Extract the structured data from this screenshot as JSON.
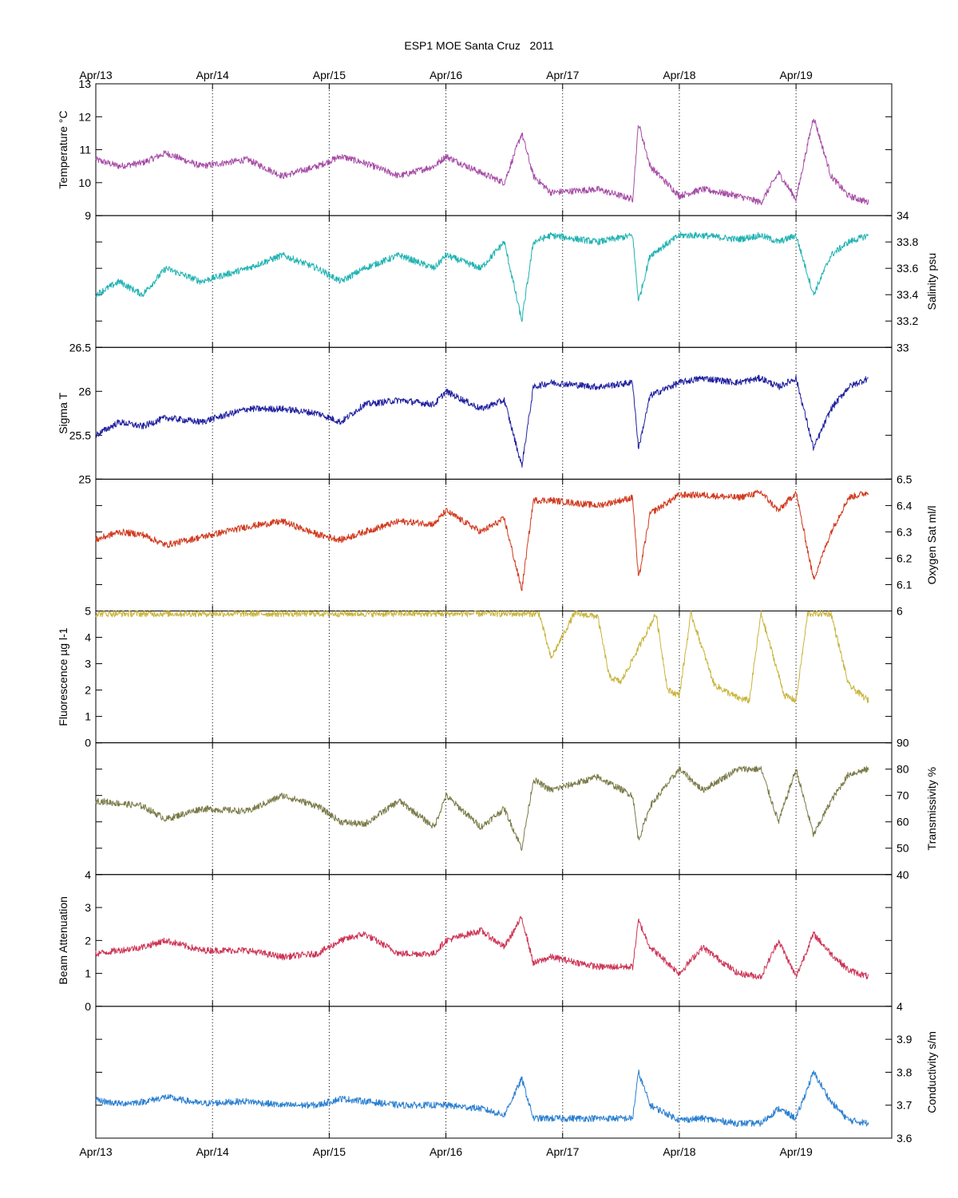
{
  "figure": {
    "title": "ESP1 MOE Santa Cruz   2011"
  },
  "chart_data": {
    "type": "line",
    "x_tick_labels": [
      "Apr/13",
      "Apr/14",
      "Apr/15",
      "Apr/16",
      "Apr/17",
      "Apr/18",
      "Apr/19"
    ],
    "x_range": [
      "2011-04-13",
      "2011-04-19T20:00"
    ],
    "grid": "vertical dotted lines at each day",
    "panels": [
      {
        "id": "temperature",
        "ylabel": "Temperature °C",
        "axis_side": "left",
        "ylim": [
          9,
          13
        ],
        "ticks": [
          9,
          10,
          11,
          12,
          13
        ],
        "color": "#a64ca6",
        "series": {
          "x_days": [
            0,
            0.2,
            0.4,
            0.6,
            0.9,
            1.3,
            1.6,
            1.9,
            2.1,
            2.3,
            2.6,
            2.9,
            3.0,
            3.3,
            3.5,
            3.65,
            3.75,
            3.9,
            4.3,
            4.6,
            4.65,
            4.75,
            5.0,
            5.2,
            5.5,
            5.7,
            5.85,
            6.0,
            6.15,
            6.3,
            6.45,
            6.62
          ],
          "y": [
            10.7,
            10.5,
            10.6,
            10.9,
            10.5,
            10.7,
            10.2,
            10.5,
            10.8,
            10.6,
            10.2,
            10.5,
            10.8,
            10.3,
            10.0,
            11.5,
            10.2,
            9.7,
            9.8,
            9.5,
            11.8,
            10.5,
            9.6,
            9.8,
            9.6,
            9.4,
            10.3,
            9.5,
            12.0,
            10.2,
            9.6,
            9.4
          ]
        }
      },
      {
        "id": "salinity",
        "ylabel": "Salinity psu",
        "axis_side": "right",
        "ylim": [
          33,
          34
        ],
        "ticks": [
          33,
          33.2,
          33.4,
          33.6,
          33.8,
          34
        ],
        "color": "#20b2b2",
        "series": {
          "x_days": [
            0,
            0.2,
            0.4,
            0.6,
            0.9,
            1.3,
            1.6,
            1.9,
            2.1,
            2.3,
            2.6,
            2.9,
            3.0,
            3.3,
            3.5,
            3.65,
            3.75,
            3.9,
            4.3,
            4.6,
            4.65,
            4.75,
            5.0,
            5.2,
            5.5,
            5.7,
            5.85,
            6.0,
            6.15,
            6.3,
            6.45,
            6.62
          ],
          "y": [
            33.4,
            33.5,
            33.4,
            33.6,
            33.5,
            33.6,
            33.7,
            33.6,
            33.5,
            33.6,
            33.7,
            33.6,
            33.7,
            33.6,
            33.8,
            33.2,
            33.8,
            33.85,
            33.8,
            33.85,
            33.35,
            33.7,
            33.85,
            33.85,
            33.82,
            33.85,
            33.8,
            33.85,
            33.4,
            33.7,
            33.8,
            33.85
          ]
        }
      },
      {
        "id": "sigma-t",
        "ylabel": "Sigma T",
        "axis_side": "left",
        "ylim": [
          25,
          26.5
        ],
        "ticks": [
          25,
          25.5,
          26,
          26.5
        ],
        "color": "#2020a0",
        "series": {
          "x_days": [
            0,
            0.2,
            0.4,
            0.6,
            0.9,
            1.3,
            1.6,
            1.9,
            2.1,
            2.3,
            2.6,
            2.9,
            3.0,
            3.3,
            3.5,
            3.65,
            3.75,
            3.9,
            4.3,
            4.6,
            4.65,
            4.75,
            5.0,
            5.2,
            5.5,
            5.7,
            5.85,
            6.0,
            6.15,
            6.3,
            6.45,
            6.62
          ],
          "y": [
            25.5,
            25.65,
            25.6,
            25.7,
            25.65,
            25.8,
            25.8,
            25.75,
            25.65,
            25.85,
            25.9,
            25.85,
            26.0,
            25.8,
            25.9,
            25.15,
            26.05,
            26.1,
            26.05,
            26.1,
            25.35,
            25.95,
            26.1,
            26.15,
            26.1,
            26.15,
            26.05,
            26.15,
            25.35,
            25.8,
            26.05,
            26.15
          ]
        }
      },
      {
        "id": "oxygen",
        "ylabel": "Oxygen Sat ml/l",
        "axis_side": "right",
        "ylim": [
          6,
          6.5
        ],
        "ticks": [
          6,
          6.1,
          6.2,
          6.3,
          6.4,
          6.5
        ],
        "color": "#d03a1e",
        "series": {
          "x_days": [
            0,
            0.2,
            0.4,
            0.6,
            0.9,
            1.3,
            1.6,
            1.9,
            2.1,
            2.3,
            2.6,
            2.9,
            3.0,
            3.3,
            3.5,
            3.65,
            3.75,
            3.9,
            4.3,
            4.6,
            4.65,
            4.75,
            5.0,
            5.2,
            5.5,
            5.7,
            5.85,
            6.0,
            6.15,
            6.3,
            6.45,
            6.62
          ],
          "y": [
            6.27,
            6.3,
            6.29,
            6.25,
            6.28,
            6.32,
            6.34,
            6.29,
            6.27,
            6.3,
            6.34,
            6.33,
            6.38,
            6.3,
            6.35,
            6.08,
            6.42,
            6.42,
            6.4,
            6.43,
            6.12,
            6.37,
            6.44,
            6.44,
            6.43,
            6.45,
            6.38,
            6.45,
            6.12,
            6.3,
            6.43,
            6.45
          ]
        }
      },
      {
        "id": "fluorescence",
        "ylabel": "Fluorescence µg l-1",
        "axis_side": "left",
        "ylim": [
          0,
          5
        ],
        "ticks": [
          0,
          1,
          2,
          3,
          4,
          5
        ],
        "color": "#c8b43c",
        "series": {
          "x_days": [
            0,
            1.0,
            2.0,
            3.0,
            3.8,
            3.9,
            4.1,
            4.3,
            4.4,
            4.5,
            4.8,
            4.9,
            5.0,
            5.1,
            5.3,
            5.5,
            5.6,
            5.7,
            5.9,
            6.0,
            6.1,
            6.3,
            6.45,
            6.62
          ],
          "y": [
            4.9,
            4.9,
            4.9,
            4.9,
            4.9,
            3.2,
            4.9,
            4.8,
            2.5,
            2.3,
            4.9,
            2.0,
            1.8,
            4.9,
            2.2,
            1.7,
            1.6,
            4.9,
            1.8,
            1.6,
            4.9,
            4.9,
            2.2,
            1.6
          ]
        }
      },
      {
        "id": "transmissivity",
        "ylabel": "Transmissivity %",
        "axis_side": "right",
        "ylim": [
          40,
          90
        ],
        "ticks": [
          40,
          50,
          60,
          70,
          80,
          90
        ],
        "color": "#7a7a48",
        "series": {
          "x_days": [
            0,
            0.2,
            0.4,
            0.6,
            0.9,
            1.3,
            1.6,
            1.9,
            2.1,
            2.3,
            2.6,
            2.9,
            3.0,
            3.3,
            3.5,
            3.65,
            3.75,
            3.9,
            4.3,
            4.6,
            4.65,
            4.75,
            5.0,
            5.2,
            5.5,
            5.7,
            5.85,
            6.0,
            6.15,
            6.3,
            6.45,
            6.62
          ],
          "y": [
            68,
            67,
            66,
            61,
            65,
            64,
            70,
            66,
            60,
            59,
            68,
            58,
            70,
            58,
            65,
            50,
            76,
            72,
            77,
            70,
            53,
            66,
            80,
            72,
            80,
            80,
            60,
            80,
            55,
            68,
            78,
            80
          ]
        }
      },
      {
        "id": "beam-attenuation",
        "ylabel": "Beam Attenuation",
        "axis_side": "left",
        "ylim": [
          0,
          4
        ],
        "ticks": [
          0,
          1,
          2,
          3,
          4
        ],
        "color": "#cc3355",
        "series": {
          "x_days": [
            0,
            0.2,
            0.4,
            0.6,
            0.9,
            1.3,
            1.6,
            1.9,
            2.1,
            2.3,
            2.6,
            2.9,
            3.0,
            3.3,
            3.5,
            3.65,
            3.75,
            3.9,
            4.3,
            4.6,
            4.65,
            4.75,
            5.0,
            5.2,
            5.5,
            5.7,
            5.85,
            6.0,
            6.15,
            6.3,
            6.45,
            6.62
          ],
          "y": [
            1.6,
            1.7,
            1.8,
            2.0,
            1.7,
            1.7,
            1.5,
            1.6,
            2.0,
            2.2,
            1.6,
            1.6,
            2.0,
            2.3,
            1.8,
            2.7,
            1.3,
            1.5,
            1.2,
            1.2,
            2.6,
            1.8,
            1.0,
            1.8,
            1.0,
            0.9,
            2.0,
            0.9,
            2.2,
            1.6,
            1.1,
            0.9
          ]
        }
      },
      {
        "id": "conductivity",
        "ylabel": "Conductivity s/m",
        "axis_side": "right",
        "ylim": [
          3.6,
          4
        ],
        "ticks": [
          3.6,
          3.7,
          3.8,
          3.9,
          4
        ],
        "color": "#2a7fd0",
        "series": {
          "x_days": [
            0,
            0.2,
            0.4,
            0.6,
            0.9,
            1.3,
            1.6,
            1.9,
            2.1,
            2.3,
            2.6,
            2.9,
            3.0,
            3.3,
            3.5,
            3.65,
            3.75,
            3.9,
            4.3,
            4.6,
            4.65,
            4.75,
            5.0,
            5.2,
            5.5,
            5.7,
            5.85,
            6.0,
            6.15,
            6.3,
            6.45,
            6.62
          ],
          "y": [
            3.715,
            3.705,
            3.71,
            3.725,
            3.705,
            3.712,
            3.7,
            3.7,
            3.72,
            3.712,
            3.7,
            3.7,
            3.7,
            3.69,
            3.67,
            3.78,
            3.66,
            3.66,
            3.66,
            3.66,
            3.8,
            3.7,
            3.655,
            3.66,
            3.645,
            3.645,
            3.69,
            3.66,
            3.8,
            3.71,
            3.655,
            3.645
          ]
        }
      }
    ]
  }
}
